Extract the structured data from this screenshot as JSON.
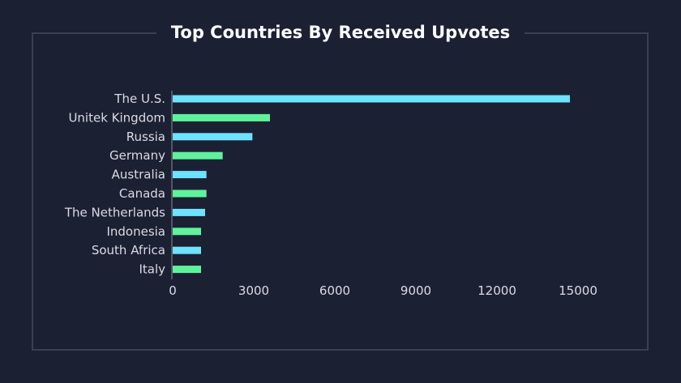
{
  "chart_data": {
    "type": "bar",
    "orientation": "horizontal",
    "title": "Top Countries By Received Upvotes",
    "categories": [
      "The U.S.",
      "Unitek Kingdom",
      "Russia",
      "Germany",
      "Australia",
      "Canada",
      "The Netherlands",
      "Indonesia",
      "South Africa",
      "Italy"
    ],
    "values": [
      14700,
      3600,
      2950,
      1850,
      1250,
      1250,
      1200,
      1050,
      1050,
      1050
    ],
    "xlim": [
      0,
      15000
    ],
    "xticks": [
      0,
      3000,
      6000,
      9000,
      12000,
      15000
    ],
    "xlabel": "",
    "ylabel": "",
    "grid": false,
    "bar_colors": [
      "#6ee2ff",
      "#5ef39b"
    ]
  }
}
